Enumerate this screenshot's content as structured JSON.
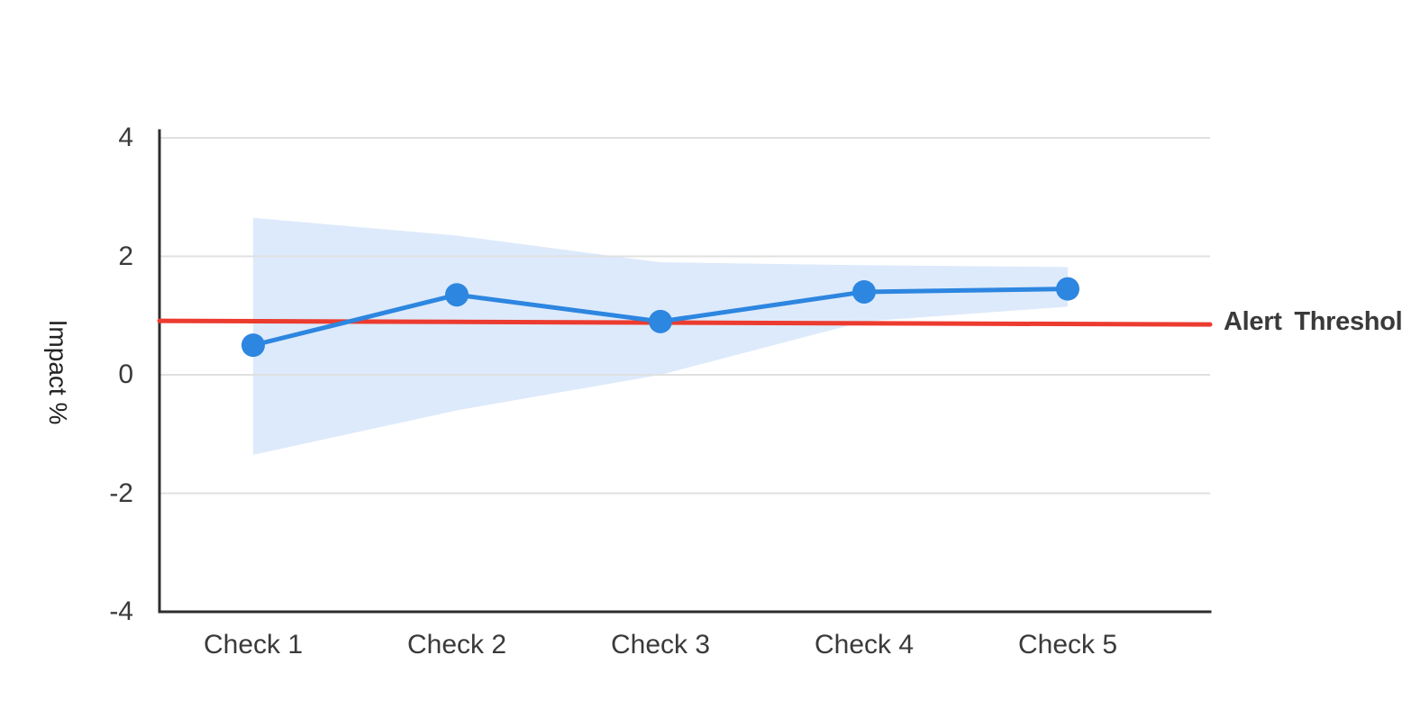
{
  "chart": {
    "y_axis_title": "Impact %",
    "threshold_label": "Alert Threshold"
  },
  "chart_data": {
    "type": "line",
    "title": "",
    "xlabel": "",
    "ylabel": "Impact %",
    "categories": [
      "Check 1",
      "Check 2",
      "Check 3",
      "Check 4",
      "Check 5"
    ],
    "series": [
      {
        "name": "Impact",
        "values": [
          0.5,
          1.35,
          0.9,
          1.4,
          1.45
        ]
      }
    ],
    "band": {
      "name": "confidence-interval",
      "upper": [
        2.65,
        2.35,
        1.9,
        1.85,
        1.82
      ],
      "lower": [
        -1.35,
        -0.6,
        0.0,
        0.9,
        1.15
      ]
    },
    "threshold": {
      "label": "Alert Threshold",
      "start_value": 0.91,
      "end_value": 0.85
    },
    "yticks": [
      4,
      2,
      0,
      -2,
      -4
    ],
    "ylim": [
      -4,
      4
    ],
    "grid": true,
    "legend_position": "none",
    "marker": "circle",
    "colors": {
      "line": "#2d86e0",
      "band": "#ddeafb",
      "threshold": "#ec3b2f",
      "grid": "#e0e0e0",
      "axis": "#2d2d2d",
      "text": "#3a3a3a"
    }
  }
}
